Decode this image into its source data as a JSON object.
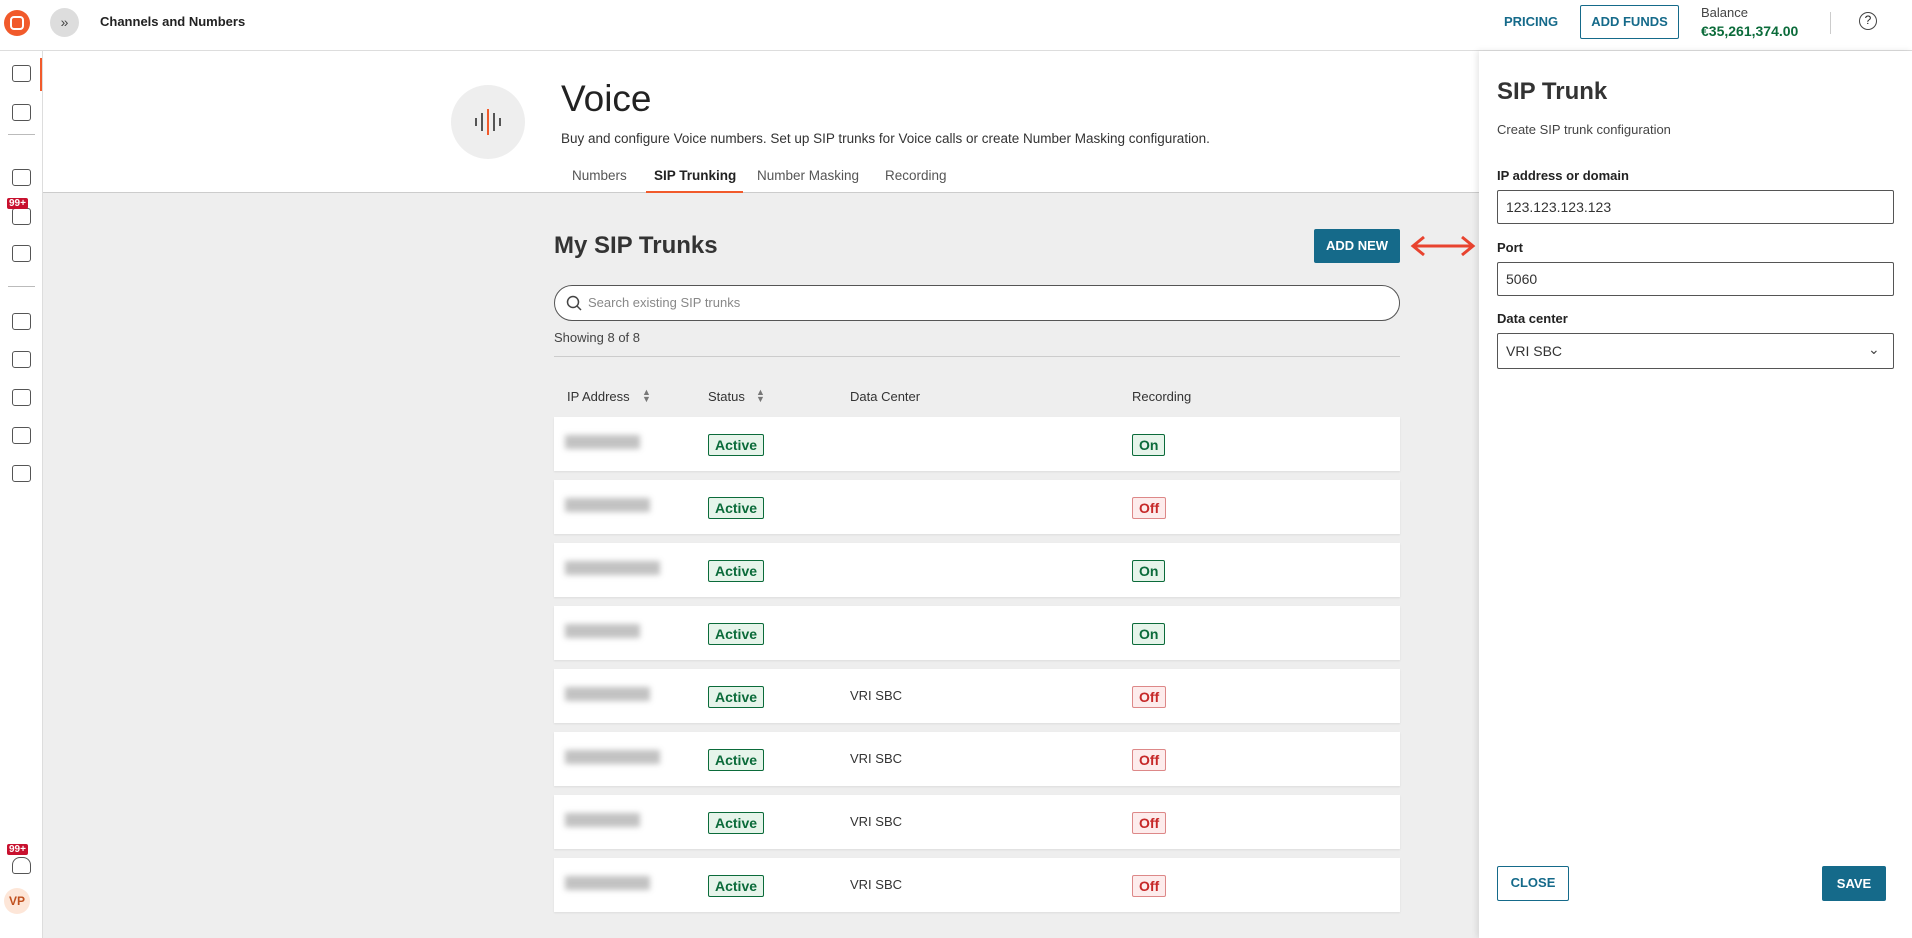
{
  "header": {
    "title": "Channels and Numbers",
    "pricing": "PRICING",
    "add_funds": "ADD FUNDS",
    "balance_label": "Balance",
    "balance": "€35,261,374.00"
  },
  "sidebar": {
    "badges": [
      "99+",
      "99+"
    ],
    "avatar": "VP"
  },
  "page": {
    "title": "Voice",
    "description": "Buy and configure Voice numbers. Set up SIP trunks for Voice calls or create Number Masking configuration.",
    "tabs": [
      "Numbers",
      "SIP Trunking",
      "Number Masking",
      "Recording"
    ],
    "active_tab": 1
  },
  "section": {
    "title": "My SIP Trunks",
    "add_button": "ADD NEW",
    "search_placeholder": "Search existing SIP trunks",
    "showing": "Showing 8 of 8"
  },
  "table": {
    "columns": [
      "IP Address",
      "Status",
      "Data Center",
      "Recording"
    ],
    "rows": [
      {
        "status": "Active",
        "data_center": null,
        "recording": "On",
        "recording_enabled": true
      },
      {
        "status": "Active",
        "data_center": null,
        "recording": "Off",
        "recording_enabled": false
      },
      {
        "status": "Active",
        "data_center": null,
        "recording": "On",
        "recording_enabled": true
      },
      {
        "status": "Active",
        "data_center": null,
        "recording": "On",
        "recording_enabled": true
      },
      {
        "status": "Active",
        "data_center": "VRI SBC",
        "recording": "Off",
        "recording_enabled": false
      },
      {
        "status": "Active",
        "data_center": "VRI SBC",
        "recording": "Off",
        "recording_enabled": false
      },
      {
        "status": "Active",
        "data_center": "VRI SBC",
        "recording": "Off",
        "recording_enabled": false
      },
      {
        "status": "Active",
        "data_center": "VRI SBC",
        "recording": "Off",
        "recording_enabled": false
      }
    ]
  },
  "panel": {
    "title": "SIP Trunk",
    "subtitle": "Create SIP trunk configuration",
    "fields": [
      {
        "label": "IP address or domain",
        "value": "123.123.123.123"
      },
      {
        "label": "Port",
        "value": "5060"
      },
      {
        "label": "Data center",
        "value": "VRI SBC"
      }
    ],
    "close": "CLOSE",
    "save": "SAVE"
  }
}
